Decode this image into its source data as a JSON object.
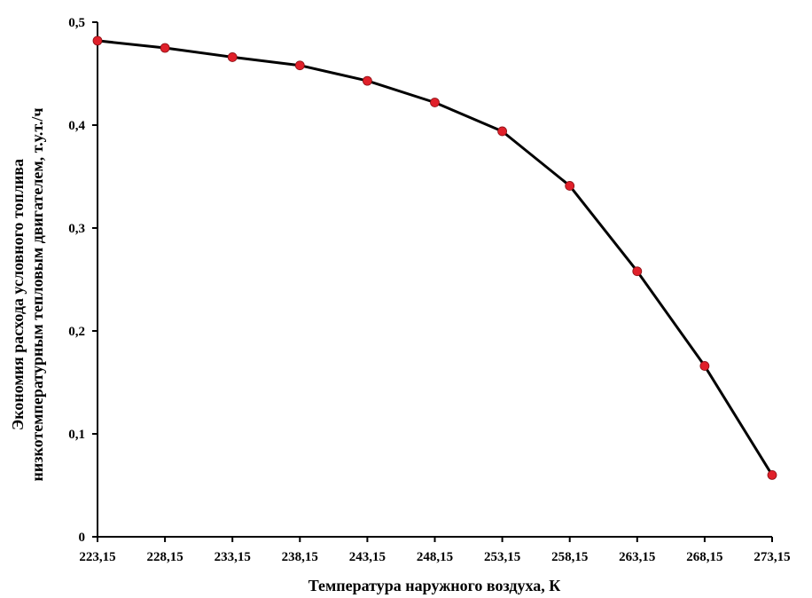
{
  "chart_data": {
    "type": "line",
    "xlabel": "Температура наружного воздуха, К",
    "ylabel_line1": "Экономия расхода условного топлива",
    "ylabel_line2": "низкотемпературным тепловым двигателем, т.у.т./ч",
    "x_tick_labels": [
      "223,15",
      "228,15",
      "233,15",
      "238,15",
      "243,15",
      "248,15",
      "253,15",
      "258,15",
      "263,15",
      "268,15",
      "273,15"
    ],
    "y_tick_labels": [
      "0",
      "0,1",
      "0,2",
      "0,3",
      "0,4",
      "0,5"
    ],
    "ylim": [
      0,
      0.5
    ],
    "x": [
      223.15,
      228.15,
      233.15,
      238.15,
      243.15,
      248.15,
      253.15,
      258.15,
      263.15,
      268.15,
      273.15
    ],
    "series": [
      {
        "values": [
          0.482,
          0.475,
          0.466,
          0.458,
          0.443,
          0.422,
          0.394,
          0.341,
          0.258,
          0.166,
          0.06
        ]
      }
    ],
    "grid": false,
    "line_color": "#000000",
    "marker_color": "#e0202a"
  }
}
